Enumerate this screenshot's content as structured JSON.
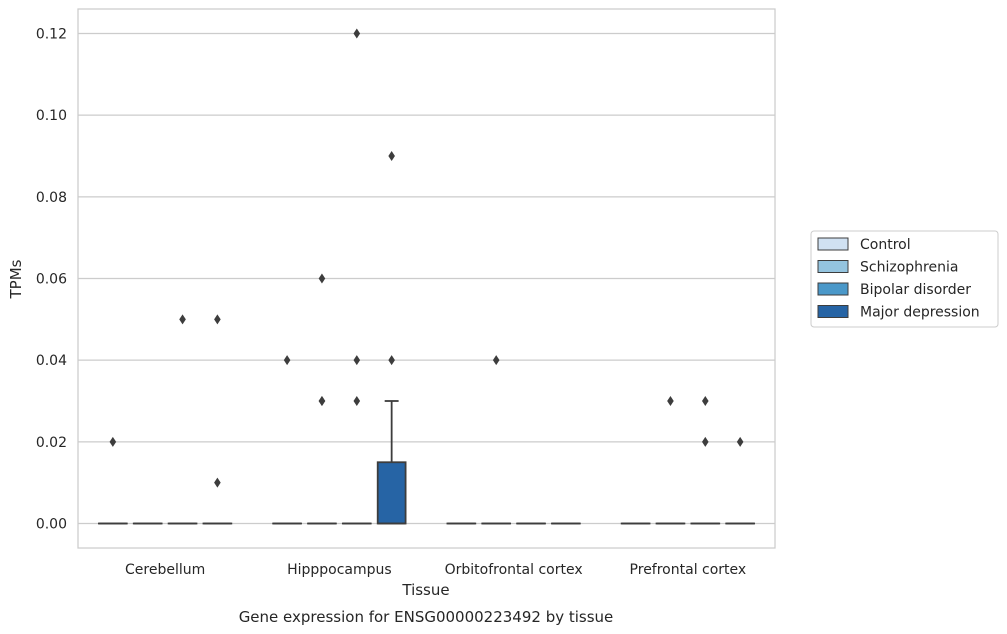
{
  "chart_data": {
    "type": "box",
    "title": "",
    "caption": "Gene expression for ENSG00000223492 by tissue",
    "xlabel": "Tissue",
    "ylabel": "TPMs",
    "ylim": [
      -0.006,
      0.126
    ],
    "yticks": [
      "0.00",
      "0.02",
      "0.04",
      "0.06",
      "0.08",
      "0.10",
      "0.12"
    ],
    "grid": "horizontal",
    "legend_position": "right",
    "categories": [
      "Cerebellum",
      "Hipppocampus",
      "Orbitofrontal cortex",
      "Prefrontal cortex"
    ],
    "series": [
      {
        "name": "Control",
        "color": "#d0e1f2",
        "boxes": [
          {
            "q1": 0,
            "median": 0,
            "q3": 0,
            "whisker_low": 0,
            "whisker_high": 0,
            "outliers": [
              0.02
            ]
          },
          {
            "q1": 0,
            "median": 0,
            "q3": 0,
            "whisker_low": 0,
            "whisker_high": 0,
            "outliers": [
              0.04
            ]
          },
          {
            "q1": 0,
            "median": 0,
            "q3": 0,
            "whisker_low": 0,
            "whisker_high": 0,
            "outliers": []
          },
          {
            "q1": 0,
            "median": 0,
            "q3": 0,
            "whisker_low": 0,
            "whisker_high": 0,
            "outliers": []
          }
        ]
      },
      {
        "name": "Schizophrenia",
        "color": "#94c4df",
        "boxes": [
          {
            "q1": 0,
            "median": 0,
            "q3": 0,
            "whisker_low": 0,
            "whisker_high": 0,
            "outliers": []
          },
          {
            "q1": 0,
            "median": 0,
            "q3": 0,
            "whisker_low": 0,
            "whisker_high": 0,
            "outliers": [
              0.03,
              0.03,
              0.06
            ]
          },
          {
            "q1": 0,
            "median": 0,
            "q3": 0,
            "whisker_low": 0,
            "whisker_high": 0,
            "outliers": [
              0.04
            ]
          },
          {
            "q1": 0,
            "median": 0,
            "q3": 0,
            "whisker_low": 0,
            "whisker_high": 0,
            "outliers": [
              0.03
            ]
          }
        ]
      },
      {
        "name": "Bipolar disorder",
        "color": "#4a98c9",
        "boxes": [
          {
            "q1": 0,
            "median": 0,
            "q3": 0,
            "whisker_low": 0,
            "whisker_high": 0,
            "outliers": [
              0.05
            ]
          },
          {
            "q1": 0,
            "median": 0,
            "q3": 0,
            "whisker_low": 0,
            "whisker_high": 0,
            "outliers": [
              0.03,
              0.04,
              0.12
            ]
          },
          {
            "q1": 0,
            "median": 0,
            "q3": 0,
            "whisker_low": 0,
            "whisker_high": 0,
            "outliers": []
          },
          {
            "q1": 0,
            "median": 0,
            "q3": 0,
            "whisker_low": 0,
            "whisker_high": 0,
            "outliers": [
              0.02,
              0.03
            ]
          }
        ]
      },
      {
        "name": "Major depression",
        "color": "#2664a5",
        "boxes": [
          {
            "q1": 0,
            "median": 0,
            "q3": 0,
            "whisker_low": 0,
            "whisker_high": 0,
            "outliers": [
              0.01,
              0.05
            ]
          },
          {
            "q1": 0,
            "median": 0,
            "q3": 0.015,
            "whisker_low": 0,
            "whisker_high": 0.03,
            "outliers": [
              0.04,
              0.09
            ]
          },
          {
            "q1": 0,
            "median": 0,
            "q3": 0,
            "whisker_low": 0,
            "whisker_high": 0,
            "outliers": []
          },
          {
            "q1": 0,
            "median": 0,
            "q3": 0,
            "whisker_low": 0,
            "whisker_high": 0,
            "outliers": [
              0.02
            ]
          }
        ]
      }
    ]
  }
}
